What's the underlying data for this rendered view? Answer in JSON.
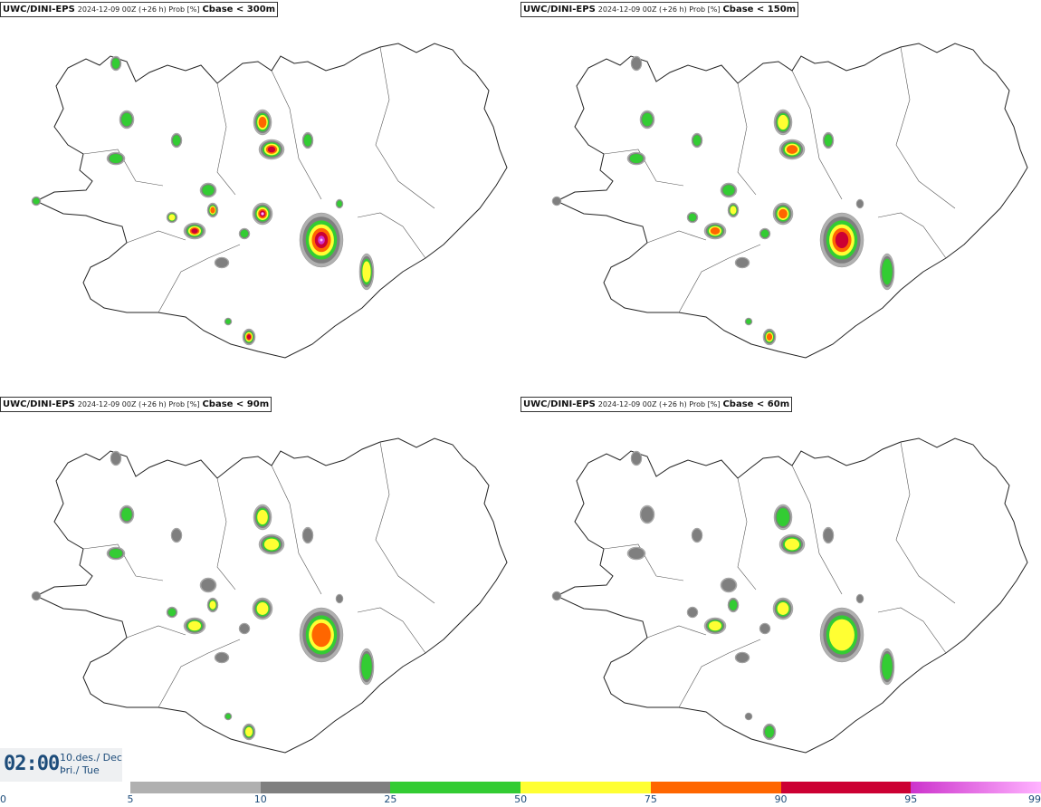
{
  "panels": [
    {
      "model": "UWC/DINI-EPS",
      "meta": "2024-12-09 00Z (+26 h) Prob [%]",
      "field": "Cbase < 300m",
      "scale": 1.0
    },
    {
      "model": "UWC/DINI-EPS",
      "meta": "2024-12-09 00Z (+26 h) Prob [%]",
      "field": "Cbase < 150m",
      "scale": 0.85
    },
    {
      "model": "UWC/DINI-EPS",
      "meta": "2024-12-09 00Z (+26 h) Prob [%]",
      "field": "Cbase < 90m",
      "scale": 0.72
    },
    {
      "model": "UWC/DINI-EPS",
      "meta": "2024-12-09 00Z (+26 h) Prob [%]",
      "field": "Cbase < 60m",
      "scale": 0.62
    }
  ],
  "clock": {
    "time": "02:00",
    "date_line1": "10.des./ Dec",
    "date_line2": "Þri./ Tue"
  },
  "legend": {
    "ticks": [
      "0",
      "5",
      "10",
      "25",
      "50",
      "75",
      "90",
      "95",
      "99"
    ],
    "segments": [
      {
        "from": 5,
        "to": 10,
        "color": "#b0b0b0"
      },
      {
        "from": 10,
        "to": 25,
        "color": "#7f7f7f"
      },
      {
        "from": 25,
        "to": 50,
        "color": "#33cc33"
      },
      {
        "from": 50,
        "to": 75,
        "color": "#ffff33"
      },
      {
        "from": 75,
        "to": 90,
        "color": "#ff6600"
      },
      {
        "from": 90,
        "to": 95,
        "color": "#cc0033"
      },
      {
        "from": 95,
        "to": 99,
        "color": "#cc33cc"
      },
      {
        "from": 99,
        "to": 100,
        "color": "#ffb3ff"
      }
    ]
  }
}
